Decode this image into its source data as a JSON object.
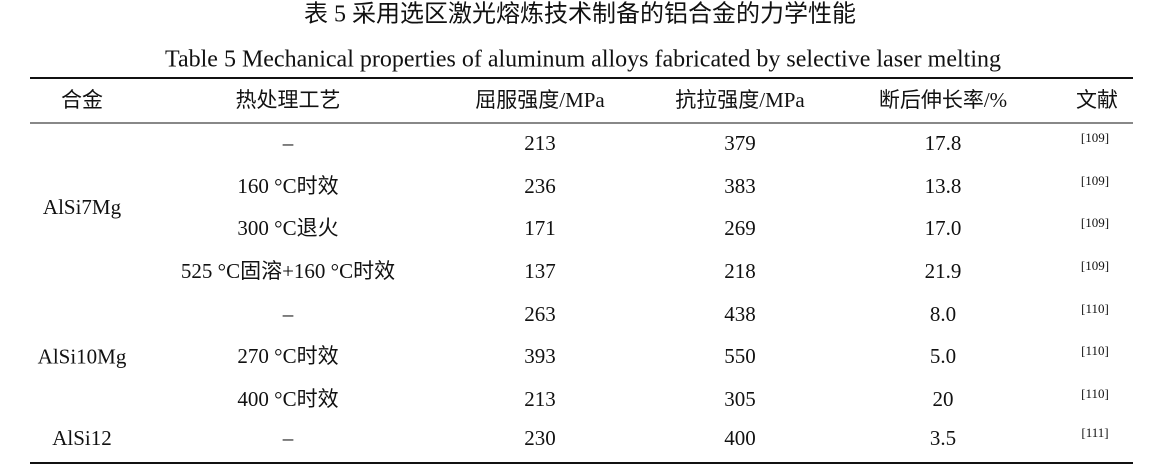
{
  "title": "表 5 采用选区激光熔炼技术制备的铝合金的力学性能",
  "subtitle": "Table 5 Mechanical properties of aluminum alloys fabricated by selective laser melting",
  "table": {
    "header": [
      "合金",
      "热处理工艺",
      "屈服强度/MPa",
      "抗拉强度/MPa",
      "断后伸长率/%",
      "文献"
    ],
    "groups": [
      {
        "alloy": "AlSi7Mg",
        "rows": [
          [
            "–",
            "213",
            "379",
            "17.8",
            "[109]"
          ],
          [
            "160 °C时效",
            "236",
            "383",
            "13.8",
            "[109]"
          ],
          [
            "300 °C退火",
            "171",
            "269",
            "17.0",
            "[109]"
          ],
          [
            "525 °C固溶+160 °C时效",
            "137",
            "218",
            "21.9",
            "[109]"
          ]
        ]
      },
      {
        "alloy": "AlSi10Mg",
        "rows": [
          [
            "–",
            "263",
            "438",
            "8.0",
            "[110]"
          ],
          [
            "270 °C时效",
            "393",
            "550",
            "5.0",
            "[110]"
          ],
          [
            "400 °C时效",
            "213",
            "305",
            "20",
            "[110]"
          ]
        ]
      },
      {
        "alloy": "AlSi12",
        "rows": [
          [
            "–",
            "230",
            "400",
            "3.5",
            "[111]"
          ]
        ]
      }
    ]
  }
}
